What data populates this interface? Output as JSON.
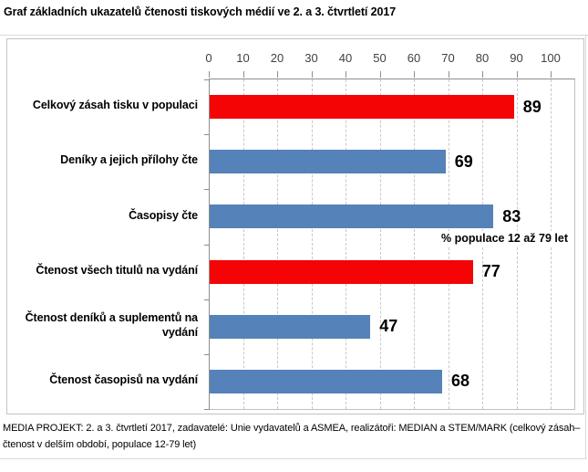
{
  "page": {
    "title": "Graf základních ukazatelů čtenosti tiskových médií ve 2. a 3. čtvrtletí 2017",
    "footer": "MEDIA PROJEKT: 2. a 3. čtvrtletí 2017, zadavatelé: Unie vydavatelů a ASMEA, realizátoři: MEDIAN a STEM/MARK (celkový zásah–čtenost v delším období, populace 12-79 let)"
  },
  "colors": {
    "bar_red": "#f40404",
    "bar_blue": "#5582b9",
    "gridline": "#c8c8c8",
    "axis_line": "#8e8e8e",
    "box_border": "#c3c3c3"
  },
  "chart_data": {
    "type": "bar",
    "orientation": "horizontal",
    "title": "Graf základních ukazatelů čtenosti tiskových médií ve 2. a 3. čtvrtletí 2017",
    "annotation": "% populace 12 až 79 let",
    "categories": [
      "Celkový zásah tisku v populaci",
      "Deníky a jejich přílohy čte",
      "Časopisy čte",
      "Čtenost všech titulů na vydání",
      "Čtenost deníků a suplementů na vydání",
      "Čtenost časopisů na vydání"
    ],
    "values": [
      89,
      69,
      83,
      77,
      47,
      68
    ],
    "bar_colors": [
      "#f40404",
      "#5582b9",
      "#5582b9",
      "#f40404",
      "#5582b9",
      "#5582b9"
    ],
    "xlim": [
      0,
      100
    ],
    "xticks": [
      0,
      10,
      20,
      30,
      40,
      50,
      60,
      70,
      80,
      90,
      100
    ],
    "grid": "vertical-dashed",
    "axis_position": "top",
    "value_labels": true
  }
}
